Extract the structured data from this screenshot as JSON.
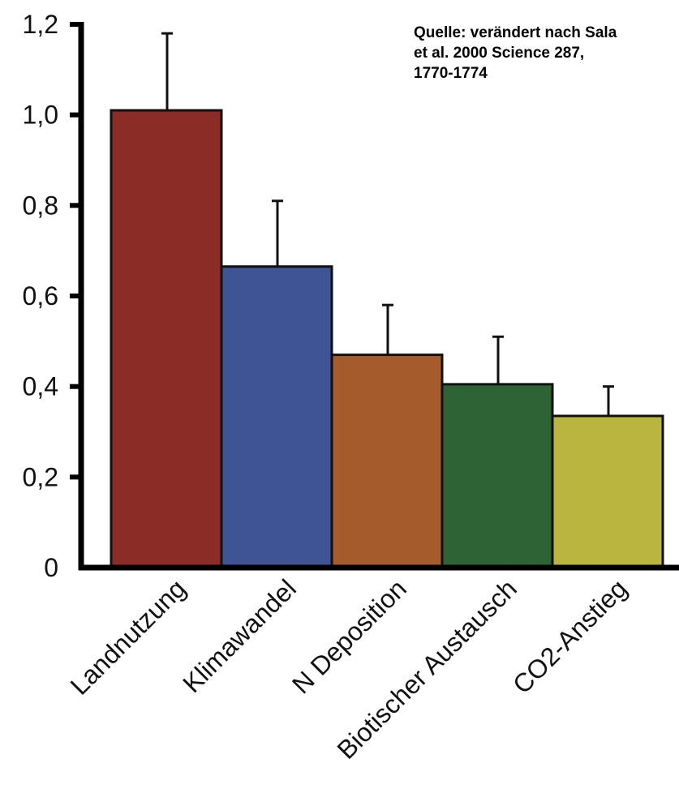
{
  "source_note": "Quelle: verändert nach Sala\net al. 2000 Science 287,\n1770-1774",
  "chart_data": {
    "type": "bar",
    "categories": [
      "Landnutzung",
      "Klimawandel",
      "N Deposition",
      "Biotischer Austausch",
      "CO2-Anstieg"
    ],
    "values": [
      1.01,
      0.665,
      0.47,
      0.405,
      0.335
    ],
    "error_upper": [
      1.18,
      0.81,
      0.58,
      0.51,
      0.4
    ],
    "colors": [
      "#8b2c26",
      "#3e5495",
      "#a65b2d",
      "#2d6335",
      "#b9b53e"
    ],
    "ylim": [
      0,
      1.2
    ],
    "yticks": [
      "0",
      "0,2",
      "0,4",
      "0,6",
      "0,8",
      "1,0",
      "1,2"
    ],
    "title": "",
    "xlabel": "",
    "ylabel": "",
    "grid": false
  }
}
